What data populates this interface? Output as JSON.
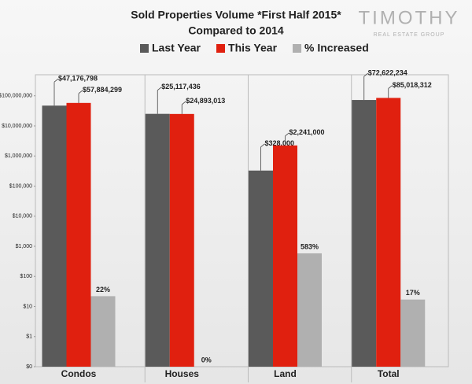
{
  "chart_data": {
    "type": "bar",
    "title": "Sold Properties Volume *First Half 2015*",
    "subtitle": "Compared to 2014",
    "logo": {
      "name": "TIMOTHY",
      "tagline": "REAL ESTATE GROUP"
    },
    "categories": [
      "Condos",
      "Houses",
      "Land",
      "Total"
    ],
    "series": [
      {
        "name": "Last Year",
        "color": "#5a5a5a",
        "values": [
          47176798,
          25117436,
          328000,
          72622234
        ],
        "value_labels": [
          "$47,176,798",
          "$25,117,436",
          "$328,000",
          "$72,622,234"
        ]
      },
      {
        "name": "This Year",
        "color": "#e0200f",
        "values": [
          57884299,
          24893013,
          2241000,
          85018312
        ],
        "value_labels": [
          "$57,884,299",
          "$24,893,013",
          "$2,241,000",
          "$85,018,312"
        ]
      },
      {
        "name": "% Increased",
        "color": "#b0b0b0",
        "values": [
          22,
          0,
          583,
          17
        ],
        "value_labels": [
          "22%",
          "0%",
          "583%",
          "17%"
        ]
      }
    ],
    "log_scale": true,
    "ylim": [
      0.1,
      500000000
    ],
    "yticks": [
      {
        "value": 0.1,
        "label": "$0"
      },
      {
        "value": 1,
        "label": "$1"
      },
      {
        "value": 10,
        "label": "$10"
      },
      {
        "value": 100,
        "label": "$100"
      },
      {
        "value": 1000,
        "label": "$1,000"
      },
      {
        "value": 10000,
        "label": "$10,000"
      },
      {
        "value": 100000,
        "label": "$100,000"
      },
      {
        "value": 1000000,
        "label": "$1,000,000"
      },
      {
        "value": 10000000,
        "label": "$10,000,000"
      },
      {
        "value": 100000000,
        "label": "$100,000,000"
      }
    ],
    "grid": false,
    "legend": "top"
  }
}
